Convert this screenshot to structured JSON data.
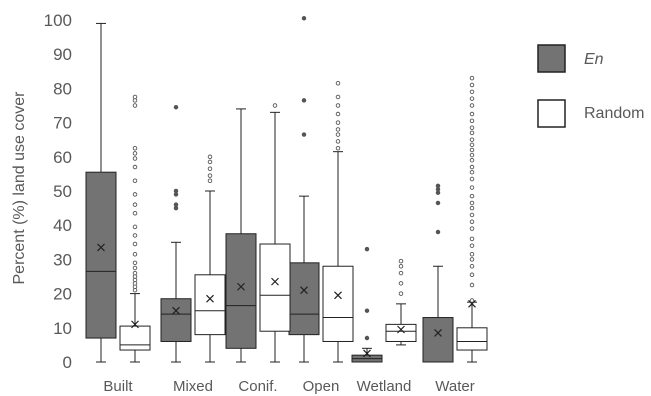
{
  "chart_data": {
    "type": "boxplot",
    "ylabel": "Percent (%) land use cover",
    "ylim": [
      0,
      100
    ],
    "yticks": [
      0,
      10,
      20,
      30,
      40,
      50,
      60,
      70,
      80,
      90,
      100
    ],
    "grid": false,
    "legend_position": "right",
    "categories": [
      "Built",
      "Mixed",
      "Conif.",
      "Open",
      "Wetland",
      "Water"
    ],
    "series": [
      {
        "name": "En",
        "fill": "#737373",
        "boxes": [
          {
            "min": 0,
            "q1": 7,
            "median": 26.5,
            "q3": 55.5,
            "max": 99,
            "mean": 33.5,
            "outliers": []
          },
          {
            "min": 0,
            "q1": 6,
            "median": 14,
            "q3": 18.5,
            "max": 35,
            "mean": 15,
            "outliers": [
              45,
              46,
              49,
              50,
              74.5
            ]
          },
          {
            "min": 0,
            "q1": 4,
            "median": 16.5,
            "q3": 37.5,
            "max": 74,
            "mean": 22,
            "outliers": []
          },
          {
            "min": 0,
            "q1": 8,
            "median": 14,
            "q3": 29,
            "max": 48.5,
            "mean": 21,
            "outliers": [
              66.5,
              76.5,
              100.5
            ]
          },
          {
            "min": 0,
            "q1": 0,
            "median": 1,
            "q3": 2,
            "max": 4,
            "mean": 2.5,
            "outliers": [
              7,
              15,
              33
            ]
          },
          {
            "min": 0,
            "q1": 0,
            "median": 0,
            "q3": 13,
            "max": 28,
            "mean": 8.5,
            "outliers": [
              38,
              46.5,
              49.5,
              50.5,
              51.5
            ]
          }
        ]
      },
      {
        "name": "Random",
        "fill": "#ffffff",
        "boxes": [
          {
            "min": 0,
            "q1": 3.5,
            "median": 5,
            "q3": 10.5,
            "max": 20,
            "mean": 11,
            "outliers": [
              21,
              22,
              23,
              24,
              25,
              26,
              27.5,
              29,
              31.5,
              34.5,
              37,
              39.5,
              43.5,
              46,
              49,
              53,
              57,
              59.5,
              61,
              62.5,
              75,
              76.5,
              77.5
            ]
          },
          {
            "min": 0,
            "q1": 8,
            "median": 15,
            "q3": 25.5,
            "max": 50,
            "mean": 18.5,
            "outliers": [
              53,
              54.5,
              56.5,
              58.5,
              60
            ]
          },
          {
            "min": 0,
            "q1": 9,
            "median": 19.5,
            "q3": 34.5,
            "max": 73,
            "mean": 23.5,
            "outliers": [
              75
            ]
          },
          {
            "min": 0,
            "q1": 6,
            "median": 13,
            "q3": 28,
            "max": 61.5,
            "mean": 19.5,
            "outliers": [
              62.5,
              64.5,
              66.5,
              68,
              70,
              72.5,
              75,
              77.5,
              81.5
            ]
          },
          {
            "min": 5,
            "q1": 6,
            "median": 9,
            "q3": 11,
            "max": 17,
            "mean": 9.5,
            "outliers": [
              20,
              23,
              26,
              28,
              29.5
            ]
          },
          {
            "min": 0,
            "q1": 3.5,
            "median": 6,
            "q3": 10,
            "max": 17.5,
            "mean": 17,
            "outliers": [
              18,
              22.5,
              25.5,
              28,
              30,
              31.5,
              34,
              36,
              39,
              41,
              43,
              45,
              46.5,
              48.5,
              51,
              53.5,
              55.5,
              57,
              59,
              60.5,
              62,
              63.5,
              65,
              67,
              68.5,
              70.5,
              72.5,
              75,
              77,
              79,
              81,
              83
            ]
          }
        ]
      }
    ]
  }
}
